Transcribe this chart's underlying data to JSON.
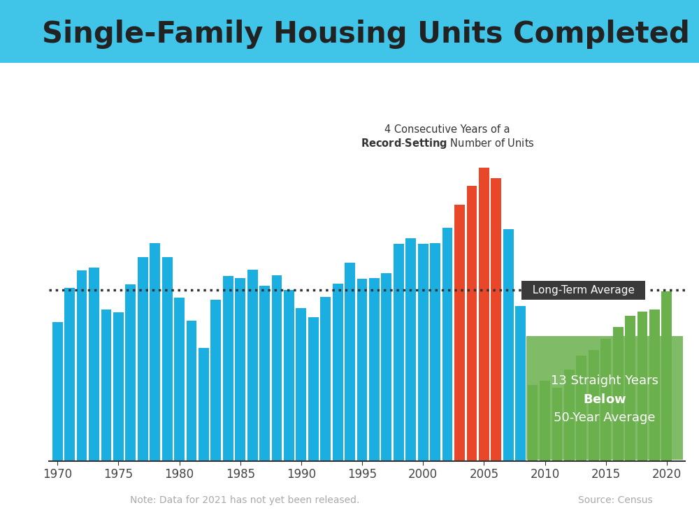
{
  "years": [
    1970,
    1971,
    1972,
    1973,
    1974,
    1975,
    1976,
    1977,
    1978,
    1979,
    1980,
    1981,
    1982,
    1983,
    1984,
    1985,
    1986,
    1987,
    1988,
    1989,
    1990,
    1991,
    1992,
    1993,
    1994,
    1995,
    1996,
    1997,
    1998,
    1999,
    2000,
    2001,
    2002,
    2003,
    2004,
    2005,
    2006,
    2007,
    2008,
    2009,
    2010,
    2011,
    2012,
    2013,
    2014,
    2015,
    2016,
    2017,
    2018,
    2019,
    2020
  ],
  "values": [
    813,
    1014,
    1116,
    1132,
    888,
    872,
    1035,
    1194,
    1274,
    1194,
    957,
    820,
    663,
    945,
    1084,
    1072,
    1119,
    1024,
    1085,
    1003,
    895,
    840,
    961,
    1039,
    1160,
    1065,
    1070,
    1100,
    1271,
    1302,
    1271,
    1273,
    1363,
    1499,
    1611,
    1716,
    1654,
    1355,
    906,
    445,
    471,
    430,
    535,
    618,
    648,
    714,
    783,
    849,
    876,
    888,
    991
  ],
  "colors_type": {
    "blue": "#1BAEE1",
    "red": "#E8472A",
    "green": "#6AB04C"
  },
  "bar_colors": [
    "blue",
    "blue",
    "blue",
    "blue",
    "blue",
    "blue",
    "blue",
    "blue",
    "blue",
    "blue",
    "blue",
    "blue",
    "blue",
    "blue",
    "blue",
    "blue",
    "blue",
    "blue",
    "blue",
    "blue",
    "blue",
    "blue",
    "blue",
    "blue",
    "blue",
    "blue",
    "blue",
    "blue",
    "blue",
    "blue",
    "blue",
    "blue",
    "blue",
    "red",
    "red",
    "red",
    "red",
    "blue",
    "blue",
    "green",
    "green",
    "green",
    "green",
    "green",
    "green",
    "green",
    "green",
    "green",
    "green",
    "green",
    "green"
  ],
  "long_term_average": 1000,
  "title": "Single-Family Housing Units Completed",
  "note": "Note: Data for 2021 has not yet been released.",
  "source": "Source: Census",
  "annotation_record": "4 Consecutive Years of a\n**Record-Setting** Number of Units",
  "annotation_below": "13 Straight Years\nBelow\n50-Year Average",
  "long_term_label": "Long-Term Average",
  "background_color": "#FFFFFF",
  "top_bar_color": "#00AEEF",
  "header_bg": "#40C4E8",
  "title_fontsize": 32,
  "axis_fontsize": 13,
  "ylim": [
    0,
    1900
  ],
  "xlim": [
    1969.5,
    2020.8
  ]
}
